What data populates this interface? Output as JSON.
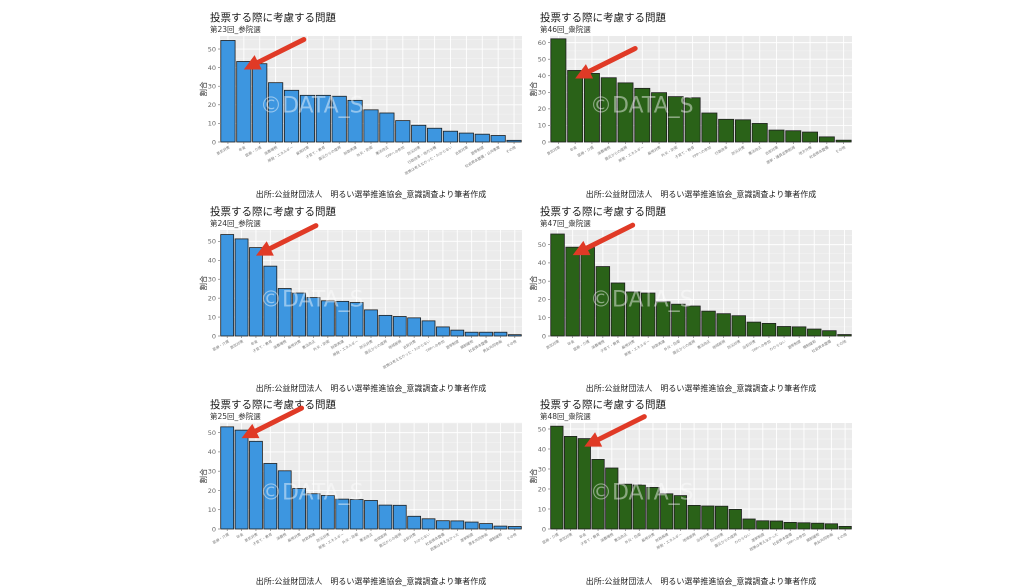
{
  "common": {
    "title": "投票する際に考慮する問題",
    "ylabel": "割合",
    "caption": "出所:公益財団法人　明るい選挙推進協会_意識調査より筆者作成",
    "watermark": "©DATA_S",
    "colors": {
      "upper_house_bar": "#3d96e0",
      "lower_house_bar": "#2a6218",
      "arrow": "#e03a26",
      "panel_bg": "#ebebeb"
    }
  },
  "chart_data": [
    {
      "type": "bar",
      "title": "投票する際に考慮する問題",
      "subtitle": "第23回_参院選",
      "xlabel": "",
      "ylabel": "割合",
      "ylim": [
        0,
        57
      ],
      "yticks": [
        0,
        10,
        20,
        30,
        40,
        50
      ],
      "grid": true,
      "color": "#3d96e0",
      "categories": [
        "景気対策",
        "年金",
        "医療・介護",
        "消費増税",
        "原発・エネルギー",
        "雇用対策",
        "子育て・教育",
        "震災からの復興",
        "財政再建",
        "外交・防衛",
        "憲法改正",
        "TPPへの参加",
        "防災対策",
        "行政改革・地方分権",
        "政策は考えなかった・わからない",
        "治安対策",
        "選挙制度",
        "社会資本整備・公共事業",
        "その他"
      ],
      "values": [
        54.6,
        43.3,
        42.1,
        31.9,
        27.8,
        25.1,
        25.1,
        24.6,
        22.4,
        17.3,
        15.6,
        11.5,
        9.0,
        7.4,
        5.8,
        4.8,
        4.2,
        3.5,
        0.9
      ],
      "arrow_target_index": 1
    },
    {
      "type": "bar",
      "title": "投票する際に考慮する問題",
      "subtitle": "第46回_衆院選",
      "xlabel": "",
      "ylabel": "割合",
      "ylim": [
        0,
        64
      ],
      "yticks": [
        0,
        10,
        20,
        30,
        40,
        50,
        60
      ],
      "grid": true,
      "color": "#2a6218",
      "categories": [
        "景気対策",
        "年金",
        "医療・介護",
        "消費増税",
        "震災からの復興",
        "原発・エネルギー",
        "雇用対策",
        "外交・防衛",
        "子育て・教育",
        "TPPへの参加",
        "行政改革",
        "防災対策",
        "憲法改正",
        "治安対策",
        "選挙・議員定数削減",
        "地方分権",
        "社会資本整備",
        "その他"
      ],
      "values": [
        62.3,
        43.2,
        41.4,
        38.8,
        35.7,
        32.4,
        29.8,
        27.4,
        26.7,
        17.5,
        13.7,
        13.4,
        11.2,
        7.2,
        6.8,
        6.0,
        3.1,
        1.1
      ],
      "arrow_target_index": 1
    },
    {
      "type": "bar",
      "title": "投票する際に考慮する問題",
      "subtitle": "第24回_参院選",
      "xlabel": "",
      "ylabel": "割合",
      "ylim": [
        0,
        56
      ],
      "yticks": [
        0,
        10,
        20,
        30,
        40,
        50
      ],
      "grid": true,
      "color": "#3d96e0",
      "categories": [
        "医療・介護",
        "景気対策",
        "年金",
        "子育て・教育",
        "消費増税",
        "雇用対策",
        "憲法改正",
        "外交・防衛",
        "財政再建",
        "原発・エネルギー",
        "防災対策",
        "震災からの復興",
        "地域振興",
        "治安対策",
        "政策は考えなかった・わからない",
        "TPPへの参加",
        "選挙制度",
        "規制緩和",
        "社会資本整備",
        "男女共同参画",
        "その他"
      ],
      "values": [
        53.6,
        51.3,
        46.7,
        36.9,
        25.1,
        22.7,
        20.3,
        18.6,
        18.3,
        17.7,
        13.8,
        10.9,
        10.3,
        9.6,
        8.0,
        4.8,
        3.1,
        2.0,
        2.0,
        2.0,
        0.7
      ],
      "arrow_target_index": 2
    },
    {
      "type": "bar",
      "title": "投票する際に考慮する問題",
      "subtitle": "第47回_衆院選",
      "xlabel": "",
      "ylabel": "割合",
      "ylim": [
        0,
        58
      ],
      "yticks": [
        0,
        10,
        20,
        30,
        40,
        50
      ],
      "grid": true,
      "color": "#2a6218",
      "categories": [
        "景気対策",
        "年金",
        "医療・介護",
        "消費増税",
        "子育て・教育",
        "雇用対策",
        "原発・エネルギー",
        "財政再建",
        "外交・防衛",
        "震災からの復興",
        "憲法改正",
        "地域振興",
        "防災対策",
        "治安対策",
        "TPPへの参加",
        "わからない",
        "選挙制度",
        "規制緩和",
        "社会資本整備",
        "その他"
      ],
      "values": [
        55.8,
        48.6,
        48.4,
        38.0,
        29.0,
        24.1,
        23.5,
        18.7,
        17.4,
        16.4,
        13.6,
        12.2,
        11.1,
        7.6,
        6.9,
        5.2,
        5.0,
        3.8,
        2.9,
        0.8
      ],
      "arrow_target_index": 1
    },
    {
      "type": "bar",
      "title": "投票する際に考慮する問題",
      "subtitle": "第25回_参院選",
      "xlabel": "",
      "ylabel": "割合",
      "ylim": [
        0,
        55
      ],
      "yticks": [
        0,
        10,
        20,
        30,
        40,
        50
      ],
      "grid": true,
      "color": "#3d96e0",
      "categories": [
        "医療・介護",
        "年金",
        "景気対策",
        "子育て・教育",
        "消費税",
        "雇用対策",
        "財政再建",
        "防災対策",
        "原発・エネルギー",
        "外交・防衛",
        "憲法改正",
        "地域振興",
        "震災からの復興",
        "治安対策",
        "わからない",
        "社会資本整備",
        "政策は考えなかった",
        "選挙制度",
        "男女共同参画",
        "規制緩和",
        "その他"
      ],
      "values": [
        53.0,
        51.3,
        45.5,
        34.0,
        30.2,
        21.0,
        18.3,
        17.4,
        15.5,
        15.3,
        14.8,
        12.4,
        12.3,
        6.6,
        5.3,
        4.3,
        4.2,
        3.6,
        2.8,
        1.5,
        1.3
      ],
      "arrow_target_index": 1
    },
    {
      "type": "bar",
      "title": "投票する際に考慮する問題",
      "subtitle": "第48回_衆院選",
      "xlabel": "",
      "ylabel": "割合",
      "ylim": [
        0,
        53
      ],
      "yticks": [
        0,
        10,
        20,
        30,
        40,
        50
      ],
      "grid": true,
      "color": "#2a6218",
      "categories": [
        "医療・介護",
        "景気対策",
        "年金",
        "子育て・教育",
        "消費増税",
        "憲法改正",
        "外交・防衛",
        "雇用対策",
        "財政再建",
        "原発・エネルギー",
        "地域振興",
        "治安対策",
        "防災対策",
        "震災からの復興",
        "わからない",
        "選挙制度",
        "政策は考えなかった",
        "社会資本整備",
        "TPPへの参加",
        "規制緩和",
        "男女共同参画",
        "その他"
      ],
      "values": [
        51.4,
        46.3,
        45.2,
        34.8,
        30.5,
        22.4,
        22.0,
        20.8,
        17.6,
        16.7,
        11.8,
        11.5,
        11.4,
        9.8,
        5.0,
        4.1,
        4.0,
        3.3,
        3.1,
        2.9,
        2.6,
        1.3
      ],
      "arrow_target_index": 2
    }
  ]
}
